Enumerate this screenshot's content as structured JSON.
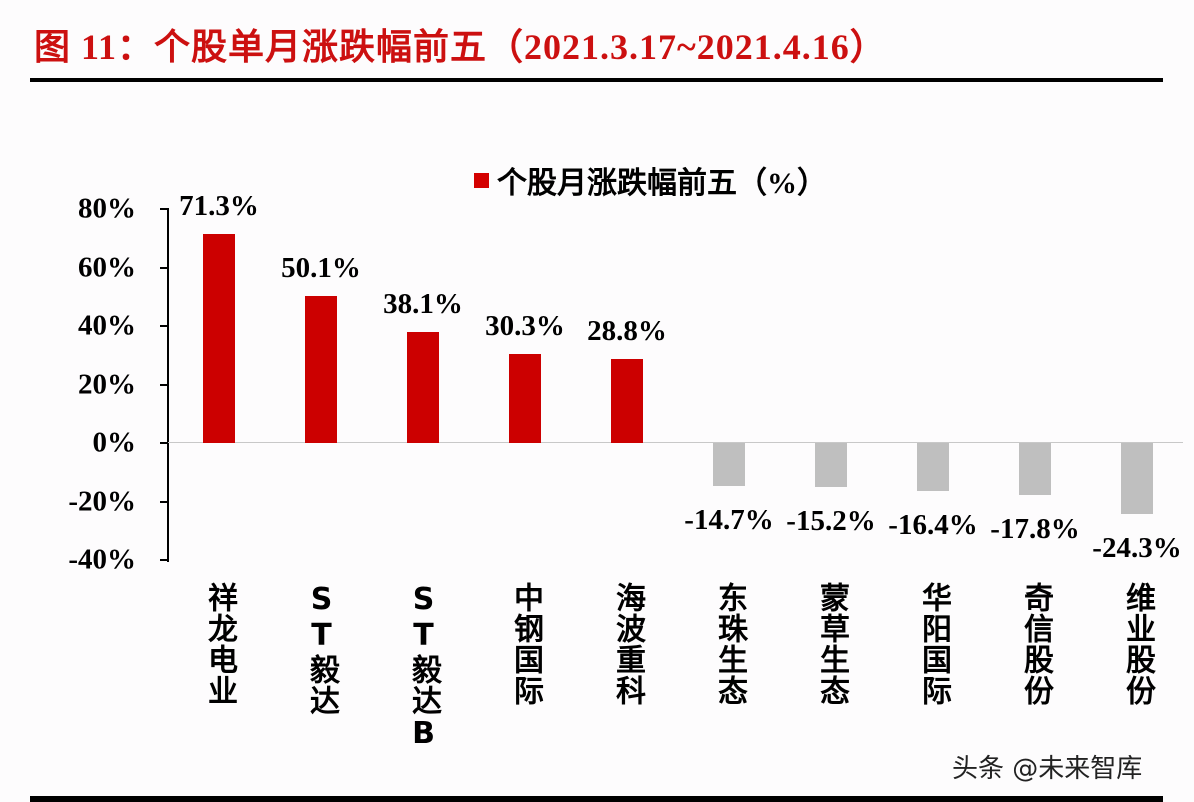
{
  "header": {
    "title": "图  11：个股单月涨跌幅前五（2021.3.17~2021.4.16）"
  },
  "watermark": "头条 @未来智库",
  "colors": {
    "title": "#cc1010",
    "positive_bar": "#cc0000",
    "negative_bar": "#bfbfbf"
  },
  "chart_data": {
    "type": "bar",
    "title": "个股单月涨跌幅前五（2021.3.17~2021.4.16）",
    "legend": [
      "个股月涨跌幅前五（%）"
    ],
    "legend_position": "top",
    "xlabel": "",
    "ylabel": "",
    "ylim": [
      -40,
      80
    ],
    "yticks": [
      "80%",
      "60%",
      "40%",
      "20%",
      "0%",
      "-20%",
      "-40%"
    ],
    "grid": false,
    "categories": [
      "祥龙电业",
      "ST毅达",
      "ST毅达B",
      "中钢国际",
      "海波重科",
      "东珠生态",
      "蒙草生态",
      "华阳国际",
      "奇信股份",
      "维业股份"
    ],
    "values": [
      71.3,
      50.1,
      38.1,
      30.3,
      28.8,
      -14.7,
      -15.2,
      -16.4,
      -17.8,
      -24.3
    ],
    "data_labels": [
      "71.3%",
      "50.1%",
      "38.1%",
      "30.3%",
      "28.8%",
      "-14.7%",
      "-15.2%",
      "-16.4%",
      "-17.8%",
      "-24.3%"
    ],
    "series": [
      {
        "name": "个股月涨跌幅前五（%）",
        "values": [
          71.3,
          50.1,
          38.1,
          30.3,
          28.8,
          -14.7,
          -15.2,
          -16.4,
          -17.8,
          -24.3
        ]
      }
    ]
  }
}
